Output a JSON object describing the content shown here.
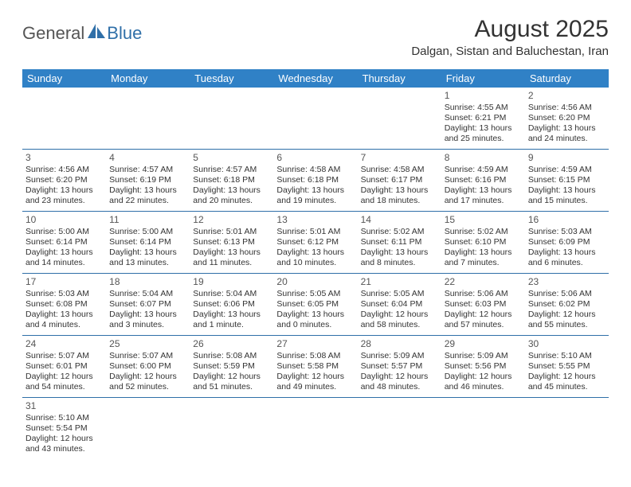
{
  "logo": {
    "text_general": "General",
    "text_blue": "Blue",
    "icon_color": "#2f6fa8"
  },
  "header": {
    "month_title": "August 2025",
    "location": "Dalgan, Sistan and Baluchestan, Iran"
  },
  "colors": {
    "header_bg": "#3081c6",
    "header_text": "#ffffff",
    "border": "#2f6fa8",
    "text": "#333333"
  },
  "weekdays": [
    "Sunday",
    "Monday",
    "Tuesday",
    "Wednesday",
    "Thursday",
    "Friday",
    "Saturday"
  ],
  "leading_blanks": 5,
  "days": [
    {
      "n": "1",
      "sunrise": "4:55 AM",
      "sunset": "6:21 PM",
      "daylight": "13 hours and 25 minutes."
    },
    {
      "n": "2",
      "sunrise": "4:56 AM",
      "sunset": "6:20 PM",
      "daylight": "13 hours and 24 minutes."
    },
    {
      "n": "3",
      "sunrise": "4:56 AM",
      "sunset": "6:20 PM",
      "daylight": "13 hours and 23 minutes."
    },
    {
      "n": "4",
      "sunrise": "4:57 AM",
      "sunset": "6:19 PM",
      "daylight": "13 hours and 22 minutes."
    },
    {
      "n": "5",
      "sunrise": "4:57 AM",
      "sunset": "6:18 PM",
      "daylight": "13 hours and 20 minutes."
    },
    {
      "n": "6",
      "sunrise": "4:58 AM",
      "sunset": "6:18 PM",
      "daylight": "13 hours and 19 minutes."
    },
    {
      "n": "7",
      "sunrise": "4:58 AM",
      "sunset": "6:17 PM",
      "daylight": "13 hours and 18 minutes."
    },
    {
      "n": "8",
      "sunrise": "4:59 AM",
      "sunset": "6:16 PM",
      "daylight": "13 hours and 17 minutes."
    },
    {
      "n": "9",
      "sunrise": "4:59 AM",
      "sunset": "6:15 PM",
      "daylight": "13 hours and 15 minutes."
    },
    {
      "n": "10",
      "sunrise": "5:00 AM",
      "sunset": "6:14 PM",
      "daylight": "13 hours and 14 minutes."
    },
    {
      "n": "11",
      "sunrise": "5:00 AM",
      "sunset": "6:14 PM",
      "daylight": "13 hours and 13 minutes."
    },
    {
      "n": "12",
      "sunrise": "5:01 AM",
      "sunset": "6:13 PM",
      "daylight": "13 hours and 11 minutes."
    },
    {
      "n": "13",
      "sunrise": "5:01 AM",
      "sunset": "6:12 PM",
      "daylight": "13 hours and 10 minutes."
    },
    {
      "n": "14",
      "sunrise": "5:02 AM",
      "sunset": "6:11 PM",
      "daylight": "13 hours and 8 minutes."
    },
    {
      "n": "15",
      "sunrise": "5:02 AM",
      "sunset": "6:10 PM",
      "daylight": "13 hours and 7 minutes."
    },
    {
      "n": "16",
      "sunrise": "5:03 AM",
      "sunset": "6:09 PM",
      "daylight": "13 hours and 6 minutes."
    },
    {
      "n": "17",
      "sunrise": "5:03 AM",
      "sunset": "6:08 PM",
      "daylight": "13 hours and 4 minutes."
    },
    {
      "n": "18",
      "sunrise": "5:04 AM",
      "sunset": "6:07 PM",
      "daylight": "13 hours and 3 minutes."
    },
    {
      "n": "19",
      "sunrise": "5:04 AM",
      "sunset": "6:06 PM",
      "daylight": "13 hours and 1 minute."
    },
    {
      "n": "20",
      "sunrise": "5:05 AM",
      "sunset": "6:05 PM",
      "daylight": "13 hours and 0 minutes."
    },
    {
      "n": "21",
      "sunrise": "5:05 AM",
      "sunset": "6:04 PM",
      "daylight": "12 hours and 58 minutes."
    },
    {
      "n": "22",
      "sunrise": "5:06 AM",
      "sunset": "6:03 PM",
      "daylight": "12 hours and 57 minutes."
    },
    {
      "n": "23",
      "sunrise": "5:06 AM",
      "sunset": "6:02 PM",
      "daylight": "12 hours and 55 minutes."
    },
    {
      "n": "24",
      "sunrise": "5:07 AM",
      "sunset": "6:01 PM",
      "daylight": "12 hours and 54 minutes."
    },
    {
      "n": "25",
      "sunrise": "5:07 AM",
      "sunset": "6:00 PM",
      "daylight": "12 hours and 52 minutes."
    },
    {
      "n": "26",
      "sunrise": "5:08 AM",
      "sunset": "5:59 PM",
      "daylight": "12 hours and 51 minutes."
    },
    {
      "n": "27",
      "sunrise": "5:08 AM",
      "sunset": "5:58 PM",
      "daylight": "12 hours and 49 minutes."
    },
    {
      "n": "28",
      "sunrise": "5:09 AM",
      "sunset": "5:57 PM",
      "daylight": "12 hours and 48 minutes."
    },
    {
      "n": "29",
      "sunrise": "5:09 AM",
      "sunset": "5:56 PM",
      "daylight": "12 hours and 46 minutes."
    },
    {
      "n": "30",
      "sunrise": "5:10 AM",
      "sunset": "5:55 PM",
      "daylight": "12 hours and 45 minutes."
    },
    {
      "n": "31",
      "sunrise": "5:10 AM",
      "sunset": "5:54 PM",
      "daylight": "12 hours and 43 minutes."
    }
  ],
  "labels": {
    "sunrise": "Sunrise:",
    "sunset": "Sunset:",
    "daylight": "Daylight:"
  }
}
